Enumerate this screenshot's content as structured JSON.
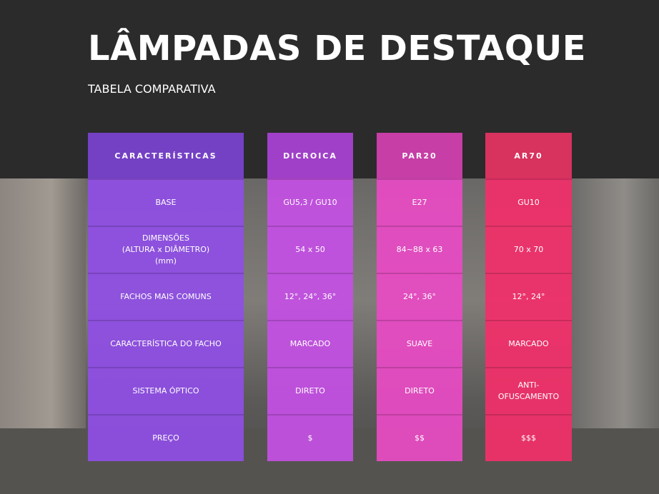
{
  "header": {
    "title": "LÂMPADAS DE DESTAQUE",
    "subtitle": "TABELA COMPARATIVA"
  },
  "table": {
    "columns": [
      {
        "header": "CARACTERÍSTICAS",
        "cells": [
          "BASE",
          "DIMENSÕES\n(ALTURA x DIÂMETRO)\n(mm)",
          "FACHOS MAIS COMUNS",
          "CARACTERÍSTICA DO FACHO",
          "SISTEMA ÓPTICO",
          "PREÇO"
        ]
      },
      {
        "header": "DICROICA",
        "cells": [
          "GU5,3 / GU10",
          "54 x 50",
          "12°, 24°, 36°",
          "MARCADO",
          "DIRETO",
          "$"
        ]
      },
      {
        "header": "PAR20",
        "cells": [
          "E27",
          "84~88 x 63",
          "24°, 36°",
          "SUAVE",
          "DIRETO",
          "$$"
        ]
      },
      {
        "header": "AR70",
        "cells": [
          "GU10",
          "70 x 70",
          "12°, 24°",
          "MARCADO",
          "ANTI-\nOFUSCAMENTO",
          "$$$"
        ]
      }
    ]
  }
}
